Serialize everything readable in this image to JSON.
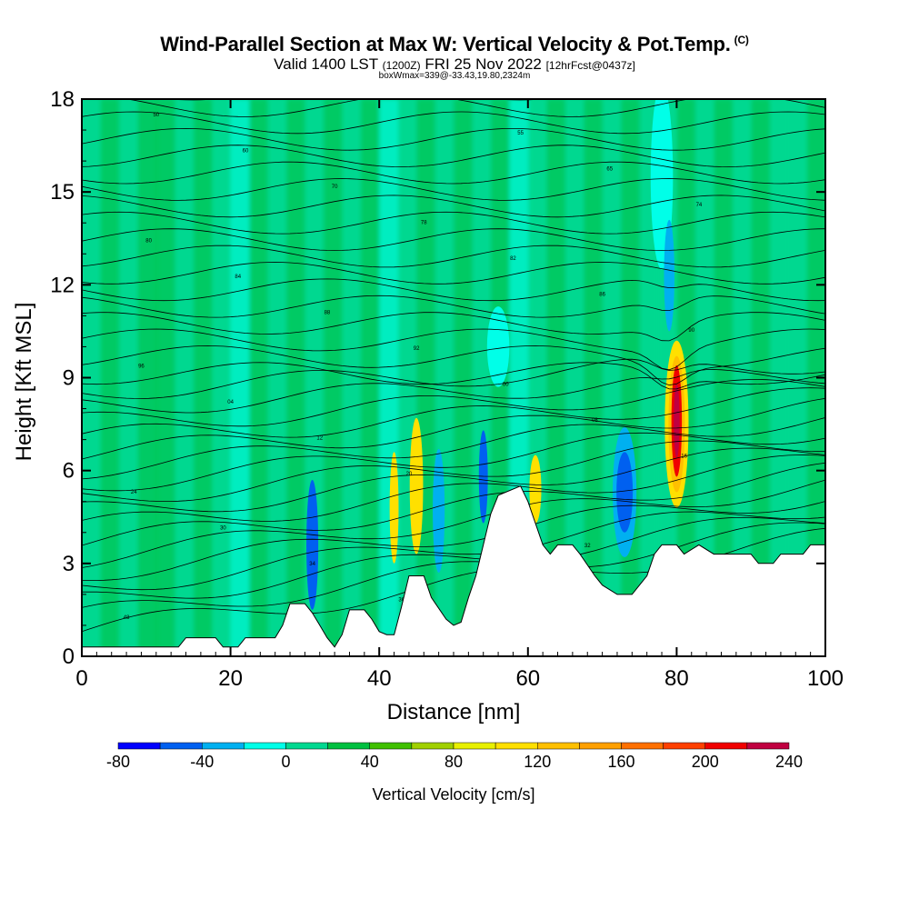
{
  "chart_data": {
    "type": "heatmap",
    "title": "Wind-Parallel Section at Max W: Vertical Velocity & Pot.Temp.",
    "title_mark": "(C)",
    "subtitle_parts": [
      "Valid 1400 LST",
      "(1200Z)",
      "FRI 25 Nov 2022",
      "[12hrFcst@0437z]"
    ],
    "subtitle2": "boxWmax=339@-33.43,19.80,2324m",
    "xlabel": "Distance [nm]",
    "ylabel": "Height [Kft MSL]",
    "xlim": [
      0,
      100
    ],
    "ylim": [
      0,
      18
    ],
    "x_ticks": [
      "0",
      "20",
      "40",
      "60",
      "80",
      "100"
    ],
    "y_ticks": [
      "0",
      "3",
      "6",
      "9",
      "12",
      "15",
      "18"
    ],
    "colorbar": {
      "label": "Vertical Velocity [cm/s]",
      "ticks": [
        "-80",
        "-40",
        "0",
        "40",
        "80",
        "120",
        "160",
        "200",
        "240"
      ],
      "bins": [
        -80,
        -60,
        -40,
        -20,
        0,
        20,
        40,
        60,
        80,
        100,
        120,
        140,
        160,
        180,
        200,
        220,
        240
      ],
      "colors": [
        "#0000ff",
        "#0060f0",
        "#00b0f0",
        "#00ffe8",
        "#00d890",
        "#00c040",
        "#40c000",
        "#a0d000",
        "#e8f000",
        "#ffe000",
        "#ffc000",
        "#ffa000",
        "#ff7000",
        "#ff4000",
        "#f00000",
        "#c00040"
      ]
    },
    "terrain_profile": [
      [
        0,
        0.3
      ],
      [
        5,
        0.3
      ],
      [
        10,
        0.3
      ],
      [
        13,
        0.3
      ],
      [
        14,
        0.6
      ],
      [
        18,
        0.6
      ],
      [
        19,
        0.3
      ],
      [
        21,
        0.3
      ],
      [
        22,
        0.6
      ],
      [
        26,
        0.6
      ],
      [
        27,
        1.0
      ],
      [
        28,
        1.7
      ],
      [
        30,
        1.7
      ],
      [
        31,
        1.4
      ],
      [
        32,
        1.0
      ],
      [
        33,
        0.6
      ],
      [
        34,
        0.3
      ],
      [
        35,
        0.7
      ],
      [
        36,
        1.5
      ],
      [
        38,
        1.5
      ],
      [
        39,
        1.2
      ],
      [
        40,
        0.8
      ],
      [
        41,
        0.7
      ],
      [
        42,
        0.7
      ],
      [
        43,
        1.6
      ],
      [
        44,
        2.6
      ],
      [
        46,
        2.6
      ],
      [
        47,
        1.9
      ],
      [
        49,
        1.2
      ],
      [
        50,
        1.0
      ],
      [
        51,
        1.1
      ],
      [
        52,
        1.9
      ],
      [
        53,
        2.6
      ],
      [
        54,
        3.6
      ],
      [
        55,
        4.6
      ],
      [
        56,
        5.2
      ],
      [
        59,
        5.5
      ],
      [
        60,
        5.0
      ],
      [
        61,
        4.3
      ],
      [
        62,
        3.6
      ],
      [
        63,
        3.3
      ],
      [
        64,
        3.6
      ],
      [
        66,
        3.6
      ],
      [
        67,
        3.3
      ],
      [
        69,
        2.6
      ],
      [
        70,
        2.3
      ],
      [
        72,
        2.0
      ],
      [
        74,
        2.0
      ],
      [
        75,
        2.3
      ],
      [
        76,
        2.6
      ],
      [
        77,
        3.3
      ],
      [
        78,
        3.6
      ],
      [
        80,
        3.6
      ],
      [
        81,
        3.3
      ],
      [
        83,
        3.6
      ],
      [
        85,
        3.3
      ],
      [
        90,
        3.3
      ],
      [
        91,
        3.0
      ],
      [
        93,
        3.0
      ],
      [
        94,
        3.3
      ],
      [
        97,
        3.3
      ],
      [
        98,
        3.6
      ],
      [
        100,
        3.6
      ]
    ],
    "vertical_velocity_regions": [
      {
        "x": 80,
        "y": 7.5,
        "rx": 1.0,
        "ry": 2.6,
        "cm_s": 20
      },
      {
        "x": 80,
        "y": 7.5,
        "rx": 1.6,
        "ry": 2.7,
        "cm_s": 100
      },
      {
        "x": 80,
        "y": 7.5,
        "rx": 1.1,
        "ry": 2.2,
        "cm_s": 130
      },
      {
        "x": 80,
        "y": 7.6,
        "rx": 0.7,
        "ry": 1.8,
        "cm_s": 200
      },
      {
        "x": 80,
        "y": 7.6,
        "rx": 0.4,
        "ry": 1.2,
        "cm_s": 230
      },
      {
        "x": 45,
        "y": 5.5,
        "rx": 0.9,
        "ry": 2.2,
        "cm_s": 100
      },
      {
        "x": 42,
        "y": 4.8,
        "rx": 0.6,
        "ry": 1.8,
        "cm_s": 100
      },
      {
        "x": 61,
        "y": 5.4,
        "rx": 0.8,
        "ry": 1.1,
        "cm_s": 100
      },
      {
        "x": 73,
        "y": 5.3,
        "rx": 1.6,
        "ry": 2.1,
        "cm_s": -40
      },
      {
        "x": 73,
        "y": 5.3,
        "rx": 1.1,
        "ry": 1.3,
        "cm_s": -60
      },
      {
        "x": 31,
        "y": 3.6,
        "rx": 0.8,
        "ry": 2.1,
        "cm_s": -60
      },
      {
        "x": 48,
        "y": 4.7,
        "rx": 0.8,
        "ry": 2.0,
        "cm_s": -40
      },
      {
        "x": 54,
        "y": 5.8,
        "rx": 0.6,
        "ry": 1.5,
        "cm_s": -60
      },
      {
        "x": 56,
        "y": 10.0,
        "rx": 1.5,
        "ry": 1.3,
        "cm_s": -20
      },
      {
        "x": 78,
        "y": 15.5,
        "rx": 1.5,
        "ry": 3.0,
        "cm_s": -20
      },
      {
        "x": 79,
        "y": 12.3,
        "rx": 0.7,
        "ry": 1.8,
        "cm_s": -40
      }
    ],
    "theta_contours": {
      "count": 36,
      "sample_labels": [
        "48",
        "36",
        "35",
        "34",
        "32",
        "30",
        "28",
        "24",
        "20",
        "16",
        "12",
        "08",
        "04",
        "00",
        "96",
        "92",
        "90",
        "88",
        "86",
        "84",
        "82",
        "80",
        "78",
        "74",
        "70",
        "65",
        "60",
        "55",
        "50"
      ]
    }
  }
}
